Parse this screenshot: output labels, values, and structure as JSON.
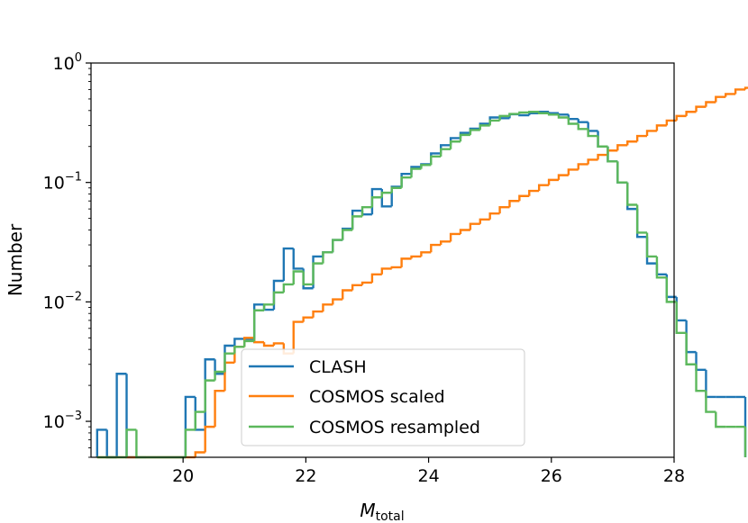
{
  "chart_data": {
    "type": "line",
    "style": "step-histogram",
    "title": "",
    "xlabel": "M",
    "xlabel_subscript": "total",
    "ylabel": "Number",
    "xlim": [
      18.5,
      28
    ],
    "ylim": [
      0.0005,
      1
    ],
    "yscale": "log",
    "grid": false,
    "legend_placement": "lower-center",
    "x_ticks": [
      {
        "value": 20,
        "label": "20"
      },
      {
        "value": 22,
        "label": "22"
      },
      {
        "value": 24,
        "label": "24"
      },
      {
        "value": 26,
        "label": "26"
      },
      {
        "value": 28,
        "label": "28"
      }
    ],
    "y_ticks": [
      {
        "value": 0.001,
        "base": "10",
        "exp": "−3"
      },
      {
        "value": 0.01,
        "base": "10",
        "exp": "−2"
      },
      {
        "value": 0.1,
        "base": "10",
        "exp": "−1"
      },
      {
        "value": 1,
        "base": "10",
        "exp": "0"
      }
    ],
    "bin_start": 18.6,
    "bin_width": 0.16,
    "series": [
      {
        "name": "CLASH",
        "color": "#1f77b4",
        "values": [
          0.00085,
          0,
          0.0025,
          0.00045,
          0,
          0.00045,
          0,
          0.00045,
          0,
          0.0016,
          0.00085,
          0.0033,
          0.0025,
          0.0043,
          0.0049,
          0.0049,
          0.0095,
          0.0086,
          0.015,
          0.028,
          0.019,
          0.013,
          0.024,
          0.026,
          0.033,
          0.041,
          0.058,
          0.054,
          0.088,
          0.063,
          0.092,
          0.118,
          0.135,
          0.142,
          0.175,
          0.205,
          0.235,
          0.26,
          0.282,
          0.31,
          0.35,
          0.345,
          0.372,
          0.365,
          0.38,
          0.39,
          0.38,
          0.37,
          0.34,
          0.32,
          0.27,
          0.2,
          0.15,
          0.1,
          0.06,
          0.035,
          0.021,
          0.017,
          0.011,
          0.007,
          0.0038,
          0.0027,
          0.0016,
          0.0016,
          0.0016,
          0.0016
        ]
      },
      {
        "name": "COSMOS scaled",
        "color": "#ff7f0e",
        "values": [
          0,
          0,
          0,
          0,
          0,
          0,
          0,
          0,
          0,
          0,
          0.00055,
          0.0009,
          0.0018,
          0.0031,
          0.0042,
          0.005,
          0.0046,
          0.0043,
          0.0045,
          0.0037,
          0.0068,
          0.0074,
          0.0083,
          0.0095,
          0.0105,
          0.0125,
          0.0138,
          0.0145,
          0.017,
          0.019,
          0.0195,
          0.023,
          0.024,
          0.026,
          0.03,
          0.032,
          0.037,
          0.04,
          0.045,
          0.049,
          0.055,
          0.062,
          0.07,
          0.077,
          0.085,
          0.095,
          0.105,
          0.115,
          0.128,
          0.142,
          0.155,
          0.17,
          0.185,
          0.205,
          0.22,
          0.245,
          0.27,
          0.3,
          0.33,
          0.36,
          0.39,
          0.43,
          0.47,
          0.52,
          0.55,
          0.6,
          0.62
        ]
      },
      {
        "name": "COSMOS resampled",
        "color": "#5cb85c",
        "values": [
          0,
          0,
          0,
          0.00085,
          0,
          0,
          0,
          0,
          0,
          0.00085,
          0.0012,
          0.0022,
          0.0026,
          0.0037,
          0.0042,
          0.0047,
          0.0085,
          0.0095,
          0.012,
          0.014,
          0.018,
          0.014,
          0.021,
          0.026,
          0.033,
          0.04,
          0.052,
          0.062,
          0.075,
          0.082,
          0.09,
          0.11,
          0.13,
          0.14,
          0.165,
          0.19,
          0.22,
          0.25,
          0.275,
          0.3,
          0.33,
          0.36,
          0.375,
          0.385,
          0.39,
          0.38,
          0.37,
          0.35,
          0.31,
          0.28,
          0.245,
          0.2,
          0.15,
          0.1,
          0.065,
          0.038,
          0.024,
          0.016,
          0.01,
          0.0055,
          0.003,
          0.0018,
          0.0012,
          0.0009,
          0.0009,
          0.0009
        ]
      }
    ]
  }
}
